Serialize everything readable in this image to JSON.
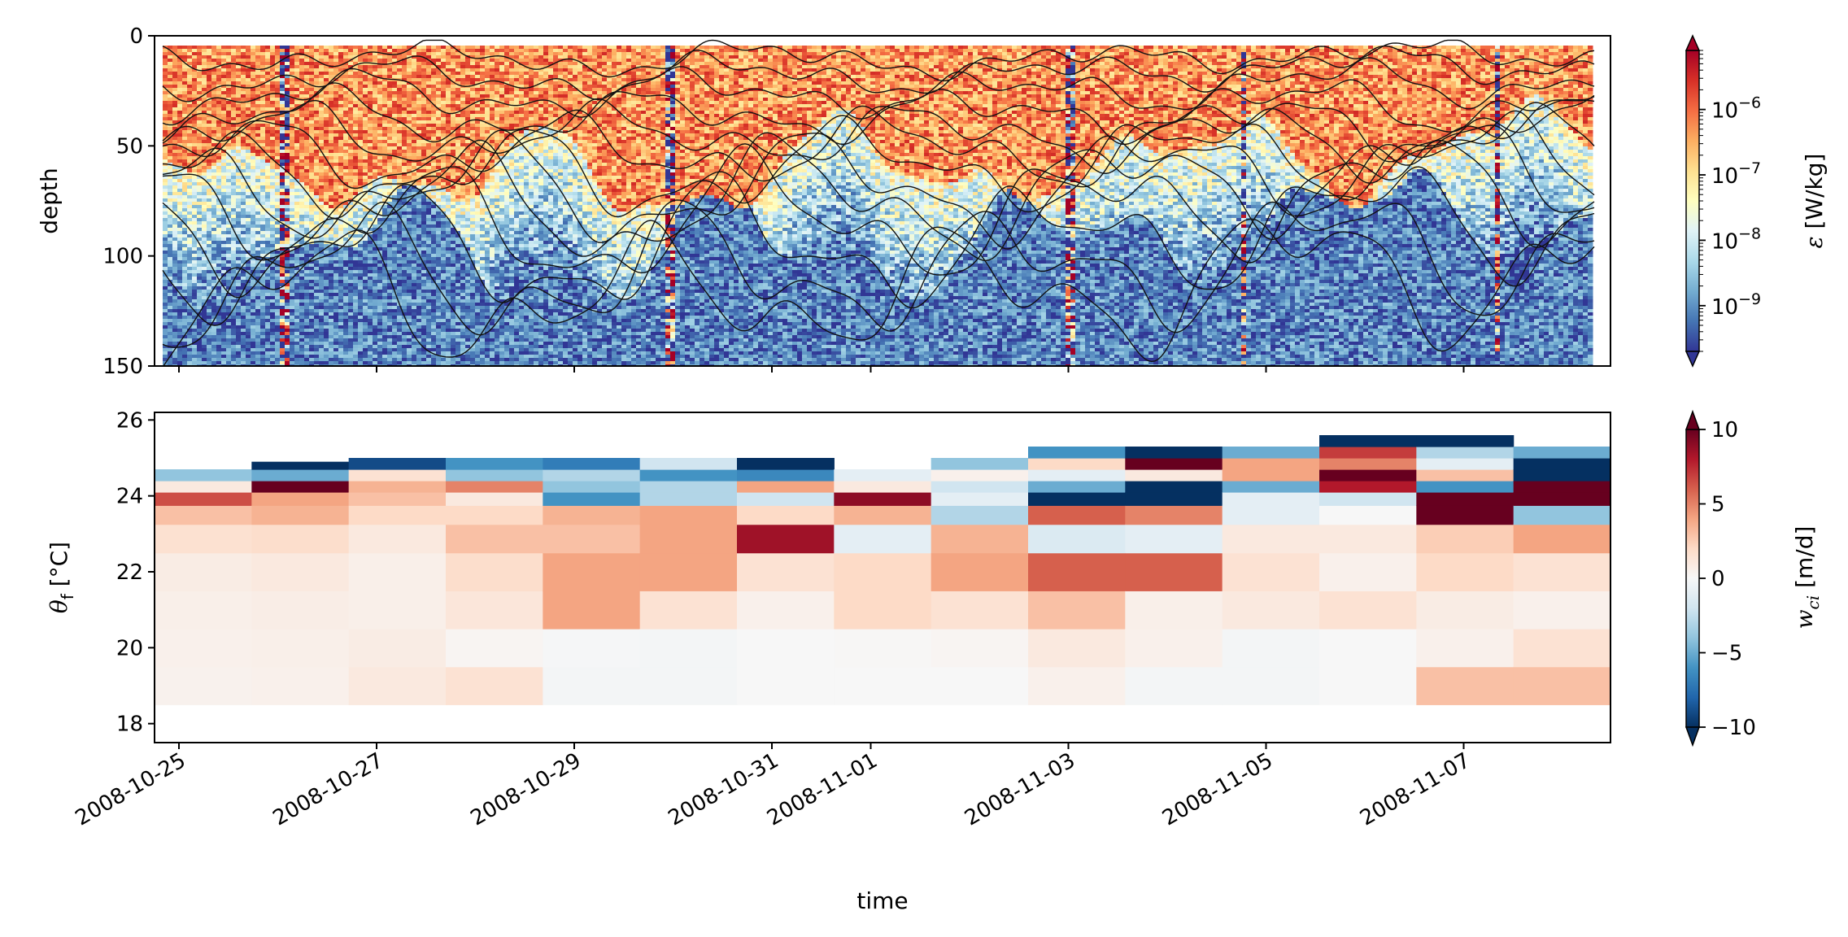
{
  "chart_data": [
    {
      "type": "heatmap",
      "title": "",
      "xlabel": "",
      "ylabel": "depth",
      "ylim": [
        150,
        0
      ],
      "yticks": [
        "0",
        "50",
        "100",
        "150"
      ],
      "xtick_dates": [
        "2008-10-25",
        "2008-10-27",
        "2008-10-29",
        "2008-10-31",
        "2008-11-01",
        "2008-11-03",
        "2008-11-05",
        "2008-11-07"
      ],
      "colorbar": {
        "label_sym": "ε",
        "label_unit": " [W/kg]",
        "scale": "log",
        "range": [
          2e-10,
          8e-06
        ],
        "ticks": [
          {
            "base": "10",
            "exp": "−6",
            "value": 1e-06
          },
          {
            "base": "10",
            "exp": "−7",
            "value": 1e-07
          },
          {
            "base": "10",
            "exp": "−8",
            "value": 1e-08
          },
          {
            "base": "10",
            "exp": "−9",
            "value": 1e-09
          }
        ],
        "extend": "both",
        "colormap": "RdYlBu_r"
      },
      "colormap_colors": [
        "#313695",
        "#4575b4",
        "#74add1",
        "#abd9e9",
        "#e0f3f8",
        "#ffffbf",
        "#fee090",
        "#fdae61",
        "#f46d43",
        "#d73027",
        "#a50026"
      ],
      "isopycnal_depths_first_day": [
        10,
        20,
        28,
        38,
        46,
        55,
        64,
        72,
        80,
        90,
        100,
        110,
        120
      ],
      "isopycnal_depths_last_day": [
        8,
        12,
        20,
        30,
        40,
        44,
        50,
        55,
        58,
        66,
        80,
        94,
        104
      ]
    },
    {
      "type": "heatmap",
      "title": "",
      "xlabel": "time",
      "ylabel_sym": "θ",
      "ylabel_sub": "f",
      "ylabel_unit": " [°C]",
      "ylim": [
        17.5,
        26.2
      ],
      "yticks": [
        "18",
        "20",
        "22",
        "24",
        "26"
      ],
      "xtick_dates": [
        "2008-10-25",
        "2008-10-27",
        "2008-10-29",
        "2008-10-31",
        "2008-11-01",
        "2008-11-03",
        "2008-11-05",
        "2008-11-07"
      ],
      "bins_y": [
        18.5,
        19.5,
        20.5,
        21.5,
        22.5,
        23.25,
        23.75,
        24.1,
        24.4,
        24.7,
        25.0,
        25.3,
        25.6
      ],
      "columns": [
        {
          "top": 24.7,
          "values": [
            0.4,
            0.5,
            0.6,
            0.8,
            1.6,
            3.0,
            6.5,
            1.0,
            -4.0,
            -10.0,
            null,
            null
          ]
        },
        {
          "top": 24.9,
          "values": [
            0.5,
            0.6,
            0.7,
            1.0,
            1.8,
            3.5,
            4.0,
            10.0,
            -5.0,
            -10.0,
            null,
            null
          ]
        },
        {
          "top": 25.1,
          "values": [
            1.0,
            0.8,
            0.6,
            0.6,
            1.0,
            2.0,
            3.0,
            3.5,
            1.5,
            -9.0,
            null,
            null
          ]
        },
        {
          "top": 25.3,
          "values": [
            1.5,
            0.2,
            1.2,
            1.8,
            3.0,
            2.0,
            1.0,
            5.0,
            -4.0,
            -6.0,
            null,
            null
          ]
        },
        {
          "top": 25.3,
          "values": [
            -0.2,
            -0.1,
            4.0,
            4.0,
            3.0,
            3.5,
            -6.0,
            -4.0,
            -3.0,
            -7.0,
            null,
            null
          ]
        },
        {
          "top": 25.2,
          "values": [
            -0.2,
            -0.2,
            1.5,
            4.0,
            4.0,
            4.0,
            -3.0,
            -3.0,
            -6.0,
            -2.0,
            null,
            null
          ]
        },
        {
          "top": 25.2,
          "values": [
            0.0,
            0.0,
            0.5,
            1.5,
            8.5,
            2.0,
            -2.0,
            4.0,
            -6.5,
            -10.0,
            null,
            null
          ]
        },
        {
          "top": 24.7,
          "values": [
            0.0,
            0.1,
            2.0,
            2.0,
            -1.0,
            3.5,
            9.0,
            1.0,
            -1.0,
            -10.0,
            null,
            null
          ]
        },
        {
          "top": 25.3,
          "values": [
            0.0,
            0.2,
            1.5,
            4.0,
            3.5,
            -3.0,
            -1.0,
            -2.0,
            0.5,
            -4.0,
            null,
            null
          ]
        },
        {
          "top": 25.6,
          "values": [
            0.5,
            1.0,
            3.0,
            6.0,
            -1.5,
            6.0,
            -10.0,
            -5.0,
            -1.0,
            2.0,
            -6.0,
            null
          ]
        },
        {
          "top": 25.6,
          "values": [
            -0.2,
            0.5,
            0.6,
            6.0,
            -1.0,
            5.0,
            -10.0,
            -10.0,
            1.0,
            10.0,
            -10.0,
            null
          ]
        },
        {
          "top": 25.6,
          "values": [
            -0.2,
            -0.2,
            1.0,
            1.5,
            1.0,
            -1.0,
            -1.0,
            -5.0,
            4.0,
            4.0,
            -5.0,
            null
          ]
        },
        {
          "top": 25.9,
          "values": [
            0.0,
            0.0,
            1.5,
            0.5,
            1.0,
            0.0,
            -2.0,
            8.0,
            10.0,
            5.0,
            7.0,
            -10.0
          ]
        },
        {
          "top": 25.9,
          "values": [
            3.0,
            0.5,
            0.8,
            2.0,
            2.5,
            10.0,
            10.0,
            -6.0,
            3.0,
            -1.0,
            -3.0,
            -10.0
          ]
        },
        {
          "top": 25.6,
          "values": [
            3.0,
            1.5,
            0.5,
            1.5,
            4.0,
            -4.0,
            10.0,
            10.0,
            -10.0,
            -10.0,
            -5.0,
            null
          ]
        }
      ],
      "colorbar": {
        "label_sym": "w",
        "label_sub": "ci",
        "label_unit": " [m/d]",
        "range": [
          -10,
          10
        ],
        "ticks": [
          "10",
          "5",
          "0",
          "−5",
          "−10"
        ],
        "extend": "both",
        "colormap": "RdBu_r"
      },
      "colormap_colors": [
        "#053061",
        "#2166ac",
        "#4393c3",
        "#92c5de",
        "#d1e5f0",
        "#f7f7f7",
        "#fddbc7",
        "#f4a582",
        "#d6604d",
        "#b2182b",
        "#67001f"
      ]
    }
  ]
}
